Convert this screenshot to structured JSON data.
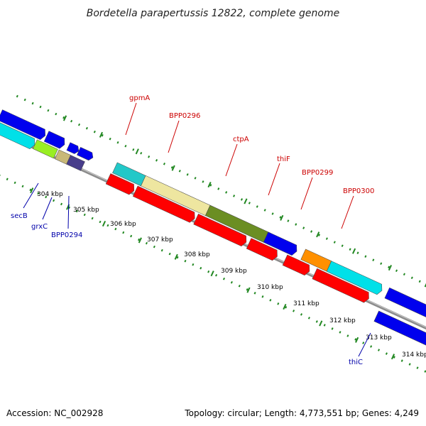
{
  "title": "Bordetella parapertussis 12822, complete genome",
  "footer": {
    "accession": "Accession: NC_002928",
    "topology": "Topology: circular; Length: 4,773,551 bp; Genes: 4,249"
  },
  "colors": {
    "backbone": "#8c8c8c",
    "dots": "#228822",
    "red": "#ff0000",
    "blue": "#0000ee",
    "red_label": "#cc0000",
    "blue_label": "#0000aa"
  },
  "ticks": [
    "304 kbp",
    "305 kbp",
    "306 kbp",
    "307 kbp",
    "308 kbp",
    "309 kbp",
    "310 kbp",
    "311 kbp",
    "312 kbp",
    "313 kbp",
    "314 kbp"
  ],
  "labels_top": [
    "gpmA",
    "BPP0296",
    "ctpA",
    "thiF",
    "BPP0299",
    "BPP0300"
  ],
  "labels_bottom": [
    "secB",
    "grxC",
    "BPP0294",
    "thiC"
  ]
}
